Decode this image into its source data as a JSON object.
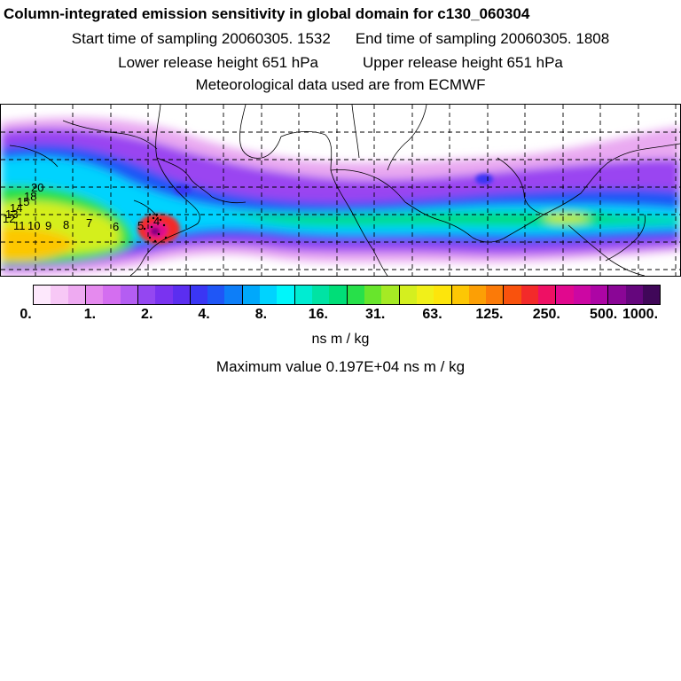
{
  "header": {
    "title": "Column-integrated emission sensitivity in global domain for c130_060304",
    "start_label": "Start time of sampling 20060305.  1532",
    "end_label": "End time of sampling 20060305.  1808",
    "lower_label": "Lower release height  651 hPa",
    "upper_label": "Upper release height  651 hPa",
    "met_label": "Meteorological data used are from ECMWF"
  },
  "map": {
    "trajectory_labels": [
      "20",
      "18",
      "15",
      "14",
      "13",
      "12",
      "11",
      "10",
      "9",
      "8",
      "7",
      "6",
      "5",
      "4"
    ]
  },
  "colorbar": {
    "colors": [
      "#fde8fc",
      "#f7c8f6",
      "#eeaaf1",
      "#e58aee",
      "#d46ef0",
      "#b45df2",
      "#9447f1",
      "#7a33f0",
      "#5b2ef0",
      "#3a36f4",
      "#1f56f6",
      "#0d7ef8",
      "#00a8fb",
      "#00d3fe",
      "#00f6fa",
      "#00ecd2",
      "#00e3a4",
      "#00de78",
      "#27e04a",
      "#68e52c",
      "#a5ea24",
      "#d4ef1f",
      "#f1f019",
      "#fde50c",
      "#fdc704",
      "#fc9f05",
      "#fb7a08",
      "#f9520d",
      "#f32a2a",
      "#ee1064",
      "#e1088e",
      "#cc07a3",
      "#ad05a5",
      "#8a0696",
      "#65067d",
      "#400759"
    ],
    "tick_labels": [
      "0.",
      "1.",
      "2.",
      "4.",
      "8.",
      "16.",
      "31.",
      "63.",
      "125.",
      "250.",
      "500.",
      "1000."
    ],
    "units": "ns m / kg",
    "max_label": "Maximum value  0.197E+04 ns m / kg"
  }
}
